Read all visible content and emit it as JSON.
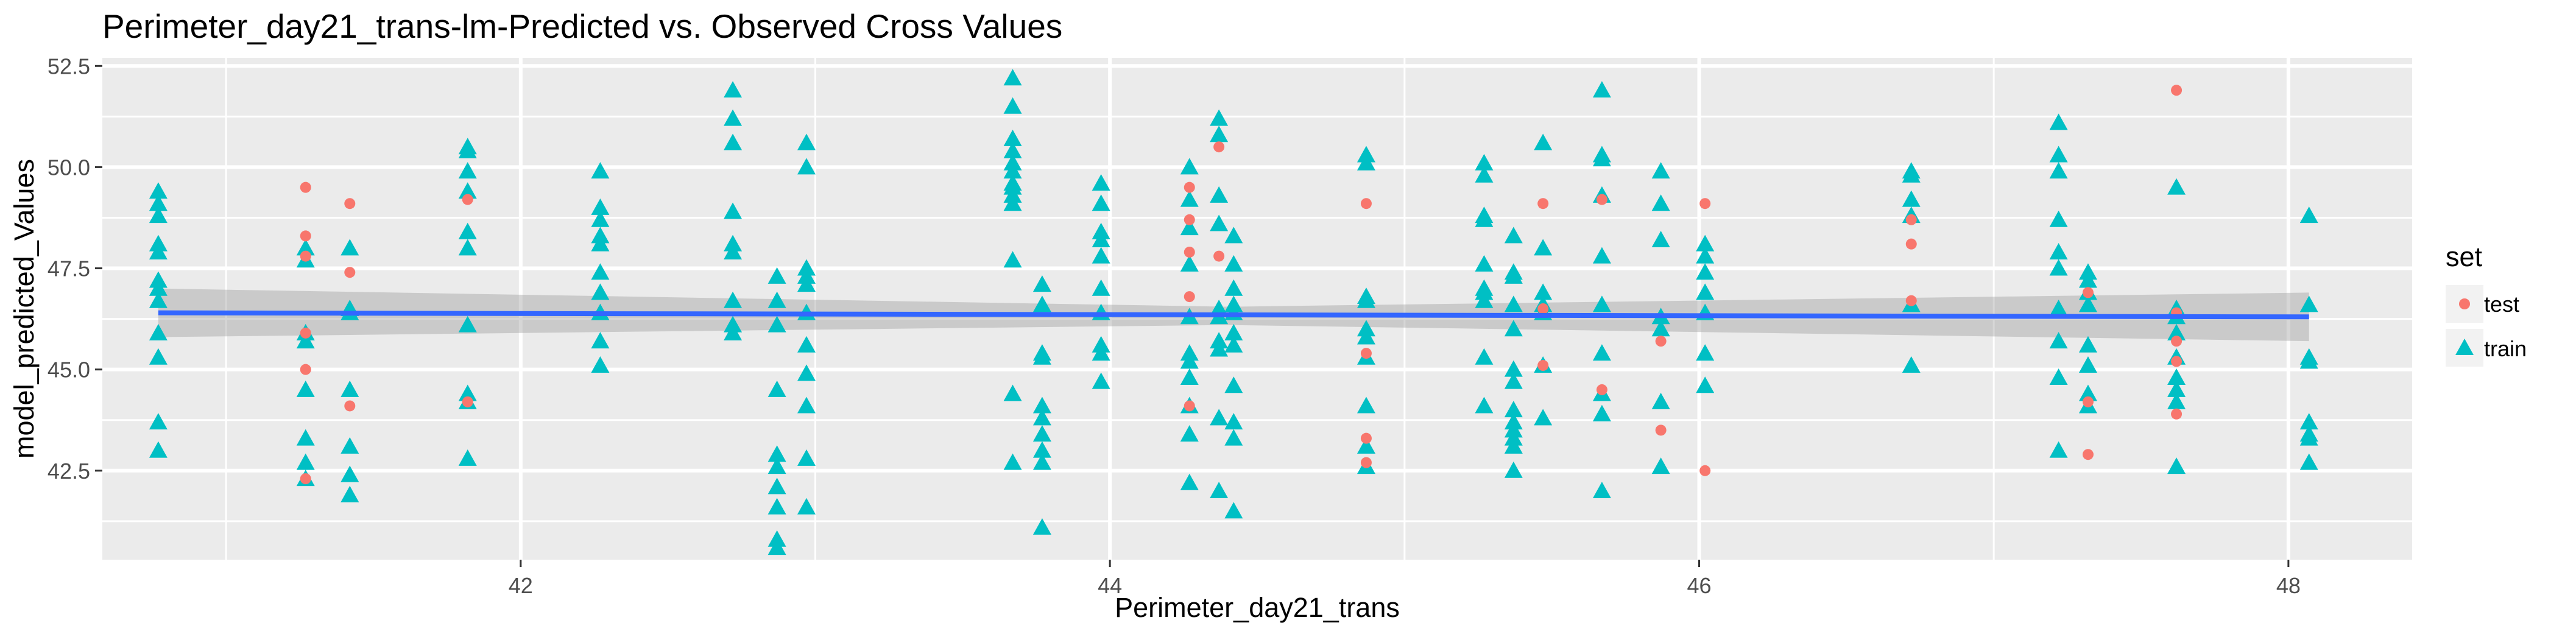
{
  "chart_data": {
    "type": "scatter",
    "title": "Perimeter_day21_trans-lm-Predicted vs. Observed Cross Values",
    "xlabel": "Perimeter_day21_trans",
    "ylabel": "model_predicted_Values",
    "xlim": [
      40.58,
      48.42
    ],
    "ylim": [
      40.3,
      52.7
    ],
    "x_ticks": [
      42,
      44,
      46,
      48
    ],
    "x_tick_labels": [
      "42",
      "44",
      "46",
      "48"
    ],
    "y_ticks": [
      42.5,
      45.0,
      47.5,
      50.0,
      52.5
    ],
    "y_tick_labels": [
      "42.5",
      "45.0",
      "47.5",
      "50.0",
      "52.5"
    ],
    "grid": true,
    "legend": {
      "title": "set",
      "position": "right",
      "entries": [
        {
          "label": "test",
          "shape": "circle",
          "color": "#F8766D"
        },
        {
          "label": "train",
          "shape": "triangle",
          "color": "#00BFC4"
        }
      ]
    },
    "colors": {
      "panel": "#EBEBEB",
      "grid": "#FFFFFF",
      "test": "#F8766D",
      "train": "#00BFC4",
      "fit_line": "#3366FF",
      "ribbon": "#999999"
    },
    "fit_line": {
      "x": [
        40.77,
        48.07
      ],
      "y": [
        46.4,
        46.3
      ]
    },
    "ribbon": {
      "x": [
        40.77,
        44.4,
        48.07
      ],
      "lower": [
        45.8,
        46.1,
        45.7
      ],
      "upper": [
        47.0,
        46.55,
        46.9
      ]
    },
    "series": [
      {
        "name": "train",
        "points": [
          [
            40.77,
            49.4
          ],
          [
            40.77,
            49.1
          ],
          [
            40.77,
            48.8
          ],
          [
            40.77,
            48.1
          ],
          [
            40.77,
            47.9
          ],
          [
            40.77,
            47.2
          ],
          [
            40.77,
            47.0
          ],
          [
            40.77,
            46.7
          ],
          [
            40.77,
            45.9
          ],
          [
            40.77,
            45.3
          ],
          [
            40.77,
            43.7
          ],
          [
            40.77,
            43.0
          ],
          [
            41.27,
            48.0
          ],
          [
            41.27,
            47.7
          ],
          [
            41.27,
            45.9
          ],
          [
            41.27,
            45.7
          ],
          [
            41.27,
            44.5
          ],
          [
            41.27,
            43.3
          ],
          [
            41.27,
            42.7
          ],
          [
            41.27,
            42.3
          ],
          [
            41.42,
            48.0
          ],
          [
            41.42,
            46.5
          ],
          [
            41.42,
            46.4
          ],
          [
            41.42,
            44.5
          ],
          [
            41.42,
            43.1
          ],
          [
            41.42,
            42.4
          ],
          [
            41.42,
            41.9
          ],
          [
            41.82,
            50.5
          ],
          [
            41.82,
            50.4
          ],
          [
            41.82,
            49.9
          ],
          [
            41.82,
            49.4
          ],
          [
            41.82,
            48.4
          ],
          [
            41.82,
            48.0
          ],
          [
            41.82,
            46.1
          ],
          [
            41.82,
            44.4
          ],
          [
            41.82,
            44.2
          ],
          [
            41.82,
            42.8
          ],
          [
            42.27,
            49.9
          ],
          [
            42.27,
            49.0
          ],
          [
            42.27,
            48.7
          ],
          [
            42.27,
            48.3
          ],
          [
            42.27,
            48.1
          ],
          [
            42.27,
            47.4
          ],
          [
            42.27,
            46.9
          ],
          [
            42.27,
            46.4
          ],
          [
            42.27,
            45.7
          ],
          [
            42.27,
            45.1
          ],
          [
            42.72,
            51.9
          ],
          [
            42.72,
            51.2
          ],
          [
            42.72,
            50.6
          ],
          [
            42.72,
            48.9
          ],
          [
            42.72,
            48.1
          ],
          [
            42.72,
            47.9
          ],
          [
            42.72,
            46.7
          ],
          [
            42.72,
            46.1
          ],
          [
            42.72,
            45.9
          ],
          [
            42.87,
            47.3
          ],
          [
            42.87,
            46.7
          ],
          [
            42.87,
            46.1
          ],
          [
            42.87,
            44.5
          ],
          [
            42.87,
            42.9
          ],
          [
            42.87,
            42.6
          ],
          [
            42.87,
            42.1
          ],
          [
            42.87,
            41.6
          ],
          [
            42.87,
            40.8
          ],
          [
            42.87,
            40.6
          ],
          [
            42.97,
            50.6
          ],
          [
            42.97,
            50.0
          ],
          [
            42.97,
            47.5
          ],
          [
            42.97,
            47.3
          ],
          [
            42.97,
            47.1
          ],
          [
            42.97,
            46.4
          ],
          [
            42.97,
            45.6
          ],
          [
            42.97,
            44.9
          ],
          [
            42.97,
            44.1
          ],
          [
            42.97,
            42.8
          ],
          [
            42.97,
            41.6
          ],
          [
            43.67,
            52.2
          ],
          [
            43.67,
            51.5
          ],
          [
            43.67,
            50.7
          ],
          [
            43.67,
            50.4
          ],
          [
            43.67,
            50.1
          ],
          [
            43.67,
            49.9
          ],
          [
            43.67,
            49.6
          ],
          [
            43.67,
            49.5
          ],
          [
            43.67,
            49.3
          ],
          [
            43.67,
            49.1
          ],
          [
            43.67,
            47.7
          ],
          [
            43.67,
            44.4
          ],
          [
            43.67,
            42.7
          ],
          [
            43.77,
            47.1
          ],
          [
            43.77,
            46.6
          ],
          [
            43.77,
            45.4
          ],
          [
            43.77,
            45.3
          ],
          [
            43.77,
            44.1
          ],
          [
            43.77,
            43.8
          ],
          [
            43.77,
            43.4
          ],
          [
            43.77,
            43.0
          ],
          [
            43.77,
            42.7
          ],
          [
            43.77,
            41.1
          ],
          [
            43.97,
            49.6
          ],
          [
            43.97,
            49.1
          ],
          [
            43.97,
            48.4
          ],
          [
            43.97,
            48.2
          ],
          [
            43.97,
            47.8
          ],
          [
            43.97,
            47.0
          ],
          [
            43.97,
            46.4
          ],
          [
            43.97,
            45.6
          ],
          [
            43.97,
            45.4
          ],
          [
            43.97,
            44.7
          ],
          [
            44.27,
            50.0
          ],
          [
            44.27,
            49.2
          ],
          [
            44.27,
            48.5
          ],
          [
            44.27,
            47.6
          ],
          [
            44.27,
            46.3
          ],
          [
            44.27,
            45.4
          ],
          [
            44.27,
            45.2
          ],
          [
            44.27,
            44.8
          ],
          [
            44.27,
            44.1
          ],
          [
            44.27,
            43.4
          ],
          [
            44.27,
            42.2
          ],
          [
            44.37,
            51.2
          ],
          [
            44.37,
            50.8
          ],
          [
            44.37,
            49.3
          ],
          [
            44.37,
            48.6
          ],
          [
            44.37,
            46.5
          ],
          [
            44.37,
            46.3
          ],
          [
            44.37,
            45.7
          ],
          [
            44.37,
            45.5
          ],
          [
            44.37,
            43.8
          ],
          [
            44.37,
            42.0
          ],
          [
            44.42,
            48.3
          ],
          [
            44.42,
            47.6
          ],
          [
            44.42,
            47.0
          ],
          [
            44.42,
            46.6
          ],
          [
            44.42,
            46.4
          ],
          [
            44.42,
            45.9
          ],
          [
            44.42,
            45.6
          ],
          [
            44.42,
            44.6
          ],
          [
            44.42,
            43.7
          ],
          [
            44.42,
            43.3
          ],
          [
            44.42,
            41.5
          ],
          [
            44.87,
            50.3
          ],
          [
            44.87,
            50.1
          ],
          [
            44.87,
            46.8
          ],
          [
            44.87,
            46.7
          ],
          [
            44.87,
            46.0
          ],
          [
            44.87,
            45.8
          ],
          [
            44.87,
            45.3
          ],
          [
            44.87,
            44.1
          ],
          [
            44.87,
            43.1
          ],
          [
            44.87,
            42.6
          ],
          [
            45.27,
            50.1
          ],
          [
            45.27,
            49.8
          ],
          [
            45.27,
            48.8
          ],
          [
            45.27,
            48.7
          ],
          [
            45.27,
            47.6
          ],
          [
            45.27,
            47.0
          ],
          [
            45.27,
            46.9
          ],
          [
            45.27,
            46.7
          ],
          [
            45.27,
            45.3
          ],
          [
            45.27,
            44.1
          ],
          [
            45.37,
            48.3
          ],
          [
            45.37,
            47.4
          ],
          [
            45.37,
            47.3
          ],
          [
            45.37,
            46.6
          ],
          [
            45.37,
            46.0
          ],
          [
            45.37,
            45.0
          ],
          [
            45.37,
            44.7
          ],
          [
            45.37,
            44.0
          ],
          [
            45.37,
            43.7
          ],
          [
            45.37,
            43.5
          ],
          [
            45.37,
            43.3
          ],
          [
            45.37,
            43.1
          ],
          [
            45.37,
            42.5
          ],
          [
            45.47,
            50.6
          ],
          [
            45.47,
            48.0
          ],
          [
            45.47,
            46.9
          ],
          [
            45.47,
            46.6
          ],
          [
            45.47,
            46.4
          ],
          [
            45.47,
            45.1
          ],
          [
            45.47,
            43.8
          ],
          [
            45.67,
            51.9
          ],
          [
            45.67,
            50.3
          ],
          [
            45.67,
            50.2
          ],
          [
            45.67,
            49.3
          ],
          [
            45.67,
            47.8
          ],
          [
            45.67,
            46.6
          ],
          [
            45.67,
            45.4
          ],
          [
            45.67,
            44.4
          ],
          [
            45.67,
            43.9
          ],
          [
            45.67,
            42.0
          ],
          [
            45.87,
            49.9
          ],
          [
            45.87,
            49.1
          ],
          [
            45.87,
            48.2
          ],
          [
            45.87,
            46.3
          ],
          [
            45.87,
            46.0
          ],
          [
            45.87,
            44.2
          ],
          [
            45.87,
            42.6
          ],
          [
            46.02,
            48.1
          ],
          [
            46.02,
            47.8
          ],
          [
            46.02,
            47.4
          ],
          [
            46.02,
            46.9
          ],
          [
            46.02,
            46.4
          ],
          [
            46.02,
            45.4
          ],
          [
            46.02,
            44.6
          ],
          [
            46.72,
            49.9
          ],
          [
            46.72,
            49.8
          ],
          [
            46.72,
            49.2
          ],
          [
            46.72,
            48.8
          ],
          [
            46.72,
            46.6
          ],
          [
            46.72,
            45.1
          ],
          [
            47.22,
            51.1
          ],
          [
            47.22,
            50.3
          ],
          [
            47.22,
            49.9
          ],
          [
            47.22,
            48.7
          ],
          [
            47.22,
            47.9
          ],
          [
            47.22,
            47.5
          ],
          [
            47.22,
            46.5
          ],
          [
            47.22,
            45.7
          ],
          [
            47.22,
            44.8
          ],
          [
            47.22,
            43.0
          ],
          [
            47.32,
            47.4
          ],
          [
            47.32,
            47.2
          ],
          [
            47.32,
            46.9
          ],
          [
            47.32,
            46.6
          ],
          [
            47.32,
            45.6
          ],
          [
            47.32,
            45.1
          ],
          [
            47.32,
            44.4
          ],
          [
            47.32,
            44.1
          ],
          [
            47.62,
            49.5
          ],
          [
            47.62,
            46.5
          ],
          [
            47.62,
            46.3
          ],
          [
            47.62,
            45.9
          ],
          [
            47.62,
            45.3
          ],
          [
            47.62,
            44.8
          ],
          [
            47.62,
            44.5
          ],
          [
            47.62,
            44.2
          ],
          [
            47.62,
            42.6
          ],
          [
            48.07,
            48.8
          ],
          [
            48.07,
            46.6
          ],
          [
            48.07,
            45.3
          ],
          [
            48.07,
            45.2
          ],
          [
            48.07,
            43.7
          ],
          [
            48.07,
            43.4
          ],
          [
            48.07,
            43.3
          ],
          [
            48.07,
            42.7
          ]
        ]
      },
      {
        "name": "test",
        "points": [
          [
            41.27,
            49.5
          ],
          [
            41.27,
            48.3
          ],
          [
            41.27,
            47.8
          ],
          [
            41.27,
            45.9
          ],
          [
            41.27,
            45.0
          ],
          [
            41.27,
            42.3
          ],
          [
            41.42,
            49.1
          ],
          [
            41.42,
            47.4
          ],
          [
            41.42,
            44.1
          ],
          [
            41.82,
            49.2
          ],
          [
            41.82,
            44.2
          ],
          [
            44.27,
            49.5
          ],
          [
            44.27,
            48.7
          ],
          [
            44.27,
            47.9
          ],
          [
            44.27,
            46.8
          ],
          [
            44.27,
            44.1
          ],
          [
            44.37,
            50.5
          ],
          [
            44.37,
            47.8
          ],
          [
            44.87,
            49.1
          ],
          [
            44.87,
            45.4
          ],
          [
            44.87,
            43.3
          ],
          [
            44.87,
            42.7
          ],
          [
            45.47,
            49.1
          ],
          [
            45.47,
            46.5
          ],
          [
            45.47,
            45.1
          ],
          [
            45.67,
            49.2
          ],
          [
            45.67,
            44.5
          ],
          [
            45.87,
            45.7
          ],
          [
            45.87,
            43.5
          ],
          [
            46.02,
            49.1
          ],
          [
            46.02,
            42.5
          ],
          [
            46.72,
            48.7
          ],
          [
            46.72,
            48.1
          ],
          [
            46.72,
            46.7
          ],
          [
            47.32,
            46.9
          ],
          [
            47.32,
            44.2
          ],
          [
            47.32,
            42.9
          ],
          [
            47.62,
            51.9
          ],
          [
            47.62,
            46.4
          ],
          [
            47.62,
            45.7
          ],
          [
            47.62,
            45.2
          ],
          [
            47.62,
            43.9
          ]
        ]
      }
    ]
  }
}
